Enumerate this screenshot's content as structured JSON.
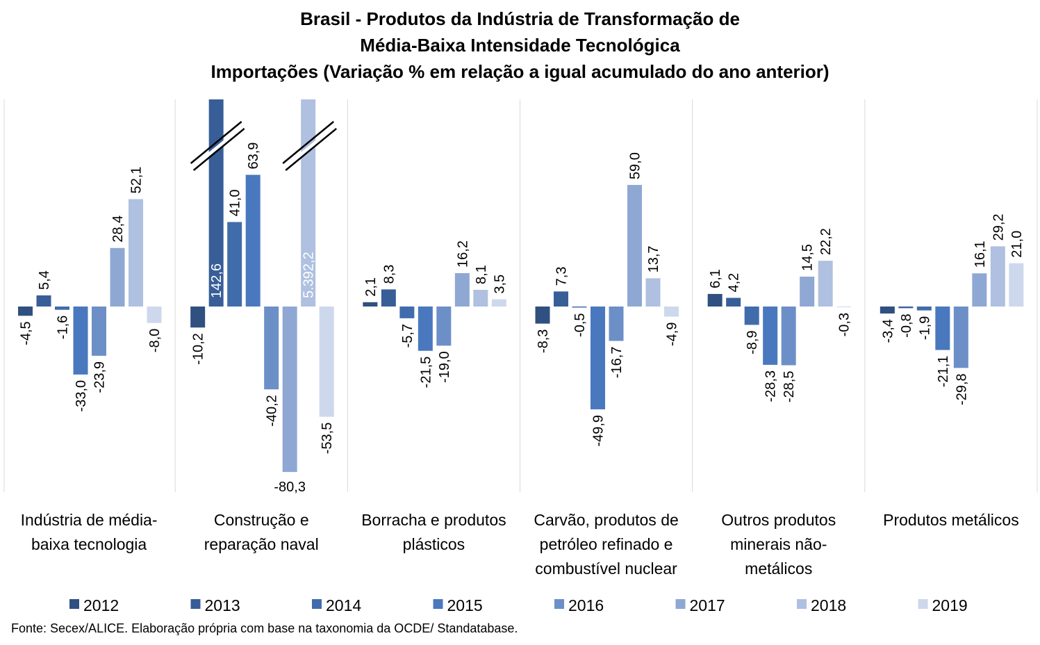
{
  "chart_data": {
    "type": "bar",
    "title": [
      "Brasil - Produtos da Indústria de Transformação de",
      "Média-Baixa Intensidade Tecnológica",
      "Importações (Variação % em relação a igual acumulado do ano anterior)"
    ],
    "categories": [
      [
        "Indústria de média-",
        "baixa tecnologia"
      ],
      [
        "Construção e",
        "reparação naval"
      ],
      [
        "Borracha e produtos",
        "plásticos"
      ],
      [
        "Carvão, produtos de",
        "petróleo refinado e",
        "combustível nuclear"
      ],
      [
        "Outros produtos",
        "minerais não-",
        "metálicos"
      ],
      [
        "Produtos metálicos"
      ]
    ],
    "series": [
      {
        "name": "2012",
        "color": "#2F5080",
        "values": [
          -4.5,
          -10.2,
          2.1,
          -8.3,
          6.1,
          -3.4
        ],
        "labels": [
          "-4,5",
          "-10,2",
          "2,1",
          "-8,3",
          "6,1",
          "-3,4"
        ]
      },
      {
        "name": "2013",
        "color": "#385E98",
        "values": [
          5.4,
          142.6,
          8.3,
          7.3,
          4.2,
          -0.8
        ],
        "labels": [
          "5,4",
          "142,6",
          "8,3",
          "7,3",
          "4,2",
          "-0,8"
        ]
      },
      {
        "name": "2014",
        "color": "#416CAC",
        "values": [
          -1.6,
          41.0,
          -5.7,
          -0.5,
          -8.9,
          -1.9
        ],
        "labels": [
          "-1,6",
          "41,0",
          "-5,7",
          "-0,5",
          "-8,9",
          "-1,9"
        ]
      },
      {
        "name": "2015",
        "color": "#4A78BE",
        "values": [
          -33.0,
          63.9,
          -21.5,
          -49.9,
          -28.3,
          -21.1
        ],
        "labels": [
          "-33,0",
          "63,9",
          "-21,5",
          "-49,9",
          "-28,3",
          "-21,1"
        ]
      },
      {
        "name": "2016",
        "color": "#6D8FC7",
        "values": [
          -23.9,
          -40.2,
          -19.0,
          -16.7,
          -28.5,
          -29.8
        ],
        "labels": [
          "-23,9",
          "-40,2",
          "-19,0",
          "-16,7",
          "-28,5",
          "-29,8"
        ]
      },
      {
        "name": "2017",
        "color": "#8FA8D3",
        "values": [
          28.4,
          -80.3,
          16.2,
          59.0,
          14.5,
          16.1
        ],
        "labels": [
          "28,4",
          "-80,3",
          "16,2",
          "59,0",
          "14,5",
          "16,1"
        ]
      },
      {
        "name": "2018",
        "color": "#AFC0E0",
        "values": [
          52.1,
          5392.2,
          8.1,
          13.7,
          22.2,
          29.2
        ],
        "labels": [
          "52,1",
          "5.392,2",
          "8,1",
          "13,7",
          "22,2",
          "29,2"
        ]
      },
      {
        "name": "2019",
        "color": "#CDD8EC",
        "values": [
          -8.0,
          -53.5,
          3.5,
          -4.9,
          -0.3,
          21.0
        ],
        "labels": [
          "-8,0",
          "-53,5",
          "3,5",
          "-4,9",
          "-0,3",
          "21,0"
        ]
      }
    ],
    "ylim": [
      -90,
      100
    ],
    "axis_break": true,
    "grid": false,
    "legend_position": "bottom"
  },
  "source": "Fonte: Secex/ALICE. Elaboração própria com base na taxonomia da OCDE/ Standatabase."
}
